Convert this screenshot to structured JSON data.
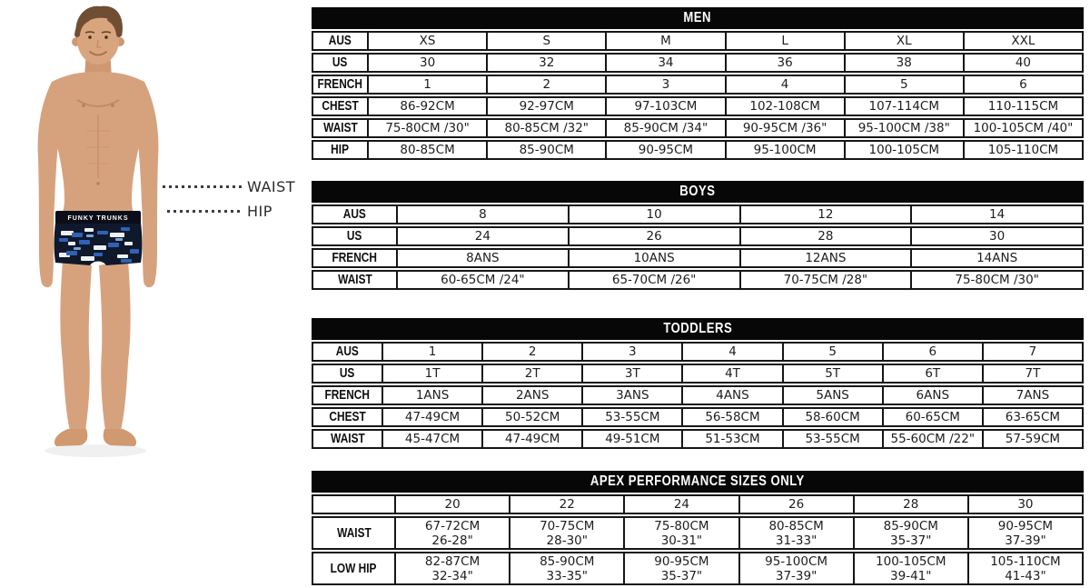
{
  "figure": {
    "labels": {
      "waist": "WAIST",
      "hip": "HIP"
    },
    "waistband_text": "FUNKY TRUNKS",
    "colors": {
      "skin": "#d6a27e",
      "skin_shade": "#c08c66",
      "hair": "#6f4e33",
      "trunks": "#10182c",
      "waistband": "#0b0e18",
      "trunks_blue": "#2f62b5",
      "trunks_light_blue": "#7aa6d8",
      "trunks_white": "#eef1f4"
    }
  },
  "tables": [
    {
      "id": "men",
      "title": "MEN",
      "rows": [
        {
          "label": "AUS",
          "cells": [
            "XS",
            "S",
            "M",
            "L",
            "XL",
            "XXL"
          ]
        },
        {
          "label": "US",
          "cells": [
            "30",
            "32",
            "34",
            "36",
            "38",
            "40"
          ]
        },
        {
          "label": "FRENCH",
          "cells": [
            "1",
            "2",
            "3",
            "4",
            "5",
            "6"
          ]
        },
        {
          "label": "CHEST",
          "cells": [
            "86-92CM",
            "92-97CM",
            "97-103CM",
            "102-108CM",
            "107-114CM",
            "110-115CM"
          ]
        },
        {
          "label": "WAIST",
          "cells": [
            "75-80CM /30\"",
            "80-85CM /32\"",
            "85-90CM /34\"",
            "90-95CM /36\"",
            "95-100CM /38\"",
            "100-105CM /40\""
          ]
        },
        {
          "label": "HIP",
          "cells": [
            "80-85CM",
            "85-90CM",
            "90-95CM",
            "95-100CM",
            "100-105CM",
            "105-110CM"
          ]
        }
      ]
    },
    {
      "id": "boys",
      "title": "BOYS",
      "rows": [
        {
          "label": "AUS",
          "cells": [
            "8",
            "10",
            "12",
            "14"
          ]
        },
        {
          "label": "US",
          "cells": [
            "24",
            "26",
            "28",
            "30"
          ]
        },
        {
          "label": "FRENCH",
          "cells": [
            "8ANS",
            "10ANS",
            "12ANS",
            "14ANS"
          ]
        },
        {
          "label": "WAIST",
          "cells": [
            "60-65CM /24\"",
            "65-70CM /26\"",
            "70-75CM /28\"",
            "75-80CM /30\""
          ]
        }
      ]
    },
    {
      "id": "toddlers",
      "title": "TODDLERS",
      "rows": [
        {
          "label": "AUS",
          "cells": [
            "1",
            "2",
            "3",
            "4",
            "5",
            "6",
            "7"
          ]
        },
        {
          "label": "US",
          "cells": [
            "1T",
            "2T",
            "3T",
            "4T",
            "5T",
            "6T",
            "7T"
          ]
        },
        {
          "label": "FRENCH",
          "cells": [
            "1ANS",
            "2ANS",
            "3ANS",
            "4ANS",
            "5ANS",
            "6ANS",
            "7ANS"
          ]
        },
        {
          "label": "CHEST",
          "cells": [
            "47-49CM",
            "50-52CM",
            "53-55CM",
            "56-58CM",
            "58-60CM",
            "60-65CM",
            "63-65CM"
          ]
        },
        {
          "label": "WAIST",
          "cells": [
            "45-47CM",
            "47-49CM",
            "49-51CM",
            "51-53CM",
            "53-55CM",
            "55-60CM /22\"",
            "57-59CM"
          ]
        }
      ]
    },
    {
      "id": "apex",
      "title": "APEX PERFORMANCE SIZES ONLY",
      "rows": [
        {
          "label": "",
          "cells": [
            "20",
            "22",
            "24",
            "26",
            "28",
            "30"
          ]
        },
        {
          "label": "WAIST",
          "cells": [
            "67-72CM\n26-28\"",
            "70-75CM\n28-30\"",
            "75-80CM\n30-31\"",
            "80-85CM\n31-33\"",
            "85-90CM\n35-37\"",
            "90-95CM\n37-39\""
          ]
        },
        {
          "label": "LOW HIP",
          "cells": [
            "82-87CM\n32-34\"",
            "85-90CM\n33-35\"",
            "90-95CM\n35-37\"",
            "95-100CM\n37-39\"",
            "100-105CM\n39-41\"",
            "105-110CM\n41-43\""
          ]
        }
      ]
    }
  ]
}
